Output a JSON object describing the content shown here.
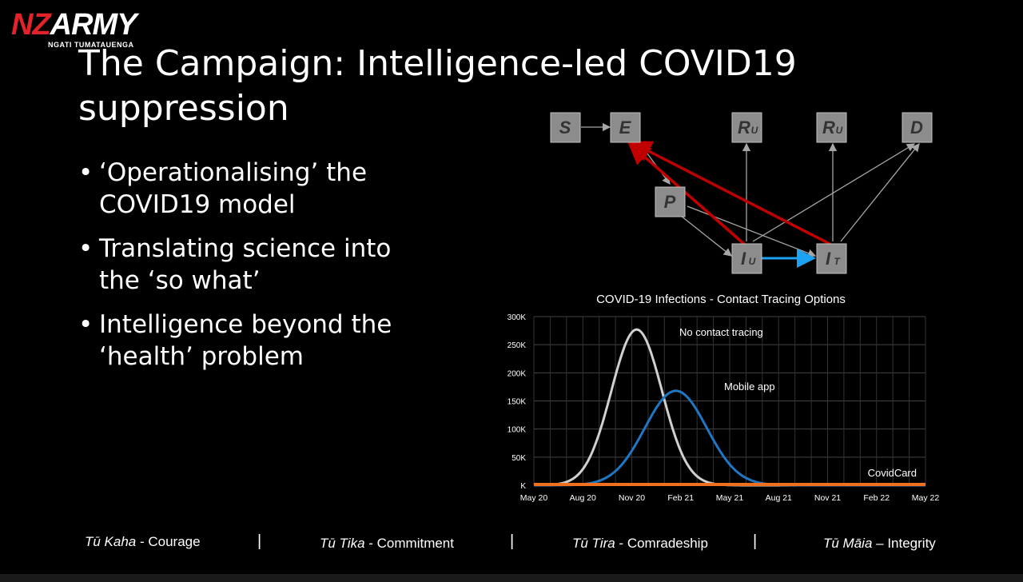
{
  "logo": {
    "nz": "NZ",
    "army": "ARMY",
    "subtitle": "NGATI TUMATAUENGA"
  },
  "title": "The Campaign: Intelligence-led COVID19 suppression",
  "bullets": [
    "‘Operationalising’ the COVID19 model",
    "Translating science into the ‘so what’",
    "Intelligence beyond the ‘health’ problem"
  ],
  "diagram": {
    "nodes": {
      "S": "S",
      "E": "E",
      "Ru1": "R",
      "Ru1_sub": "U",
      "Ru2": "R",
      "Ru2_sub": "U",
      "D": "D",
      "P": "P",
      "Iu": "I",
      "Iu_sub": "U",
      "It": "I",
      "It_sub": "T"
    },
    "colors": {
      "node_fill": "#8c8c8c",
      "gray_edge": "#a6a6a6",
      "red_edge": "#c00000",
      "blue_edge": "#1da1f2"
    }
  },
  "chart_data": {
    "type": "line",
    "title": "COVID-19 Infections - Contact Tracing Options",
    "x_ticks": [
      "May 20",
      "Aug 20",
      "Nov 20",
      "Feb 21",
      "May 21",
      "Aug 21",
      "Nov 21",
      "Feb 22",
      "May 22"
    ],
    "y_ticks": [
      "300K",
      "250K",
      "200K",
      "150K",
      "100K",
      "50K",
      "K"
    ],
    "ylim": [
      0,
      300000
    ],
    "series": [
      {
        "name": "No contact tracing",
        "color": "#d0d0d0",
        "peak": 277000,
        "peak_month": 6.3,
        "width_months": 1.55
      },
      {
        "name": "Mobile app",
        "color": "#1f77c4",
        "peak": 168000,
        "peak_month": 8.7,
        "width_months": 1.9
      },
      {
        "name": "CovidCard",
        "color": "#f07020",
        "peak": 1500,
        "peak_month": 12,
        "width_months": 8
      }
    ],
    "x_months": 24
  },
  "footer": [
    {
      "maori": "Tū Kaha",
      "dash": " - ",
      "english": "Courage"
    },
    {
      "maori": "Tū Tika",
      "dash": " - ",
      "english": "Commitment"
    },
    {
      "maori": "Tū Tira",
      "dash": " - ",
      "english": "Comradeship"
    },
    {
      "maori": "Tū Māia",
      "dash": " – ",
      "english": "Integrity"
    }
  ],
  "separator": "|"
}
